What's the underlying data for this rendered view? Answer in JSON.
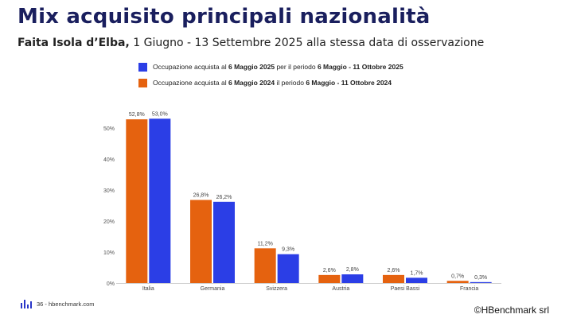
{
  "title": "Mix acquisito principali nazionalità",
  "subtitle": {
    "bold": "Faita Isola d’Elba,",
    "rest": " 1 Giugno - 13 Settembre 2025 alla stessa data di osservazione"
  },
  "legend": [
    {
      "color": "#2b3ee6",
      "prefix": "Occupazione acquista al ",
      "date": "6 Maggio 2025",
      "mid": " per il periodo ",
      "period": "6 Maggio - 11 Ottobre 2025"
    },
    {
      "color": "#e5620f",
      "prefix": "Occupazione acquista al ",
      "date": "6 Maggio 2024",
      "mid": " il periodo ",
      "period": "6 Maggio - 11 Ottobre 2024"
    }
  ],
  "chart_data": {
    "type": "bar",
    "categories": [
      "Italia",
      "Germania",
      "Svizzera",
      "Austria",
      "Paesi Bassi",
      "Francia"
    ],
    "series": [
      {
        "name": "Occupazione acquista al 6 Maggio 2024 il periodo 6 Maggio - 11 Ottobre 2024",
        "color": "#e5620f",
        "values": [
          52.8,
          26.8,
          11.2,
          2.6,
          2.6,
          0.7
        ],
        "labels": [
          "52,8%",
          "26,8%",
          "11,2%",
          "2,6%",
          "2,6%",
          "0,7%"
        ]
      },
      {
        "name": "Occupazione acquista al 6 Maggio 2025 per il periodo 6 Maggio - 11 Ottobre 2025",
        "color": "#2b3ee6",
        "values": [
          53.0,
          26.2,
          9.3,
          2.8,
          1.7,
          0.3
        ],
        "labels": [
          "53,0%",
          "26,2%",
          "9,3%",
          "2,8%",
          "1,7%",
          "0,3%"
        ]
      }
    ],
    "yticks": [
      "0%",
      "10%",
      "20%",
      "30%",
      "40%",
      "50%"
    ],
    "ylim": [
      0,
      55
    ],
    "grid": false,
    "legend_position": "top"
  },
  "footer": {
    "text": "36 - hbenchmark.com"
  },
  "copyright": "©HBenchmark srl"
}
